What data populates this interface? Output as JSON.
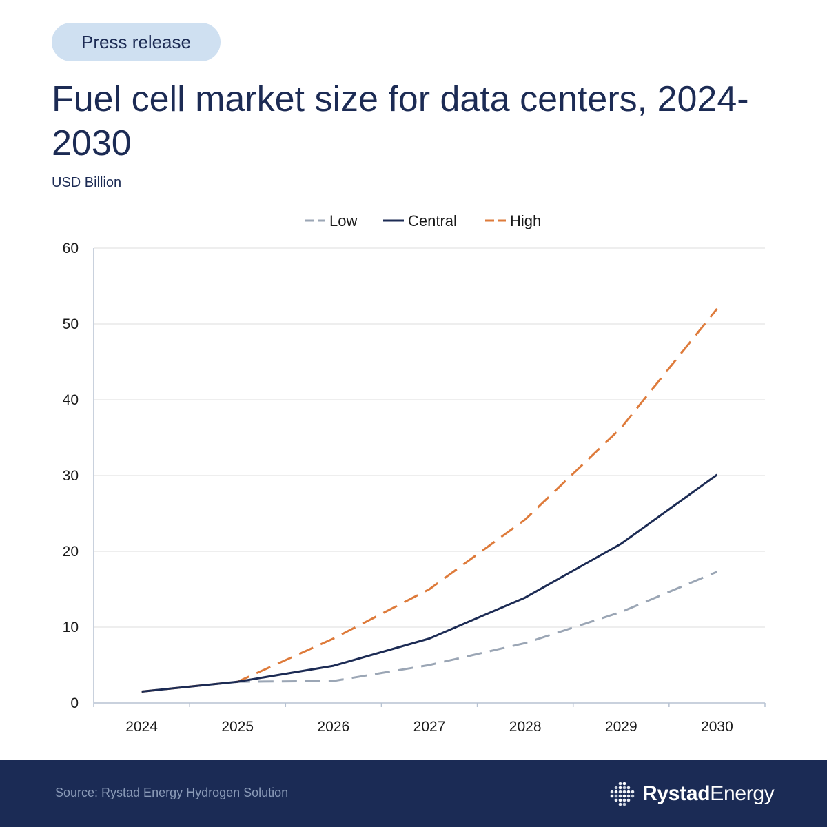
{
  "badge": "Press release",
  "title": "Fuel cell market size for data centers, 2024-2030",
  "unit": "USD Billion",
  "footer": {
    "source": "Source: Rystad Energy Hydrogen Solution",
    "logo_bold": "Rystad",
    "logo_regular": "Energy"
  },
  "colors": {
    "navy": "#1c2b54",
    "orange": "#de7b3b",
    "gray": "#9ba6b5",
    "badge_bg": "#cfe0f1",
    "footer_bg": "#1b2b55"
  },
  "chart_data": {
    "type": "line",
    "title": "Fuel cell market size for data centers, 2024-2030",
    "ylabel": "USD Billion",
    "xlabel": "",
    "categories": [
      "2024",
      "2025",
      "2026",
      "2027",
      "2028",
      "2029",
      "2030"
    ],
    "ylim": [
      0,
      60
    ],
    "yticks": [
      0,
      10,
      20,
      30,
      40,
      50,
      60
    ],
    "grid": true,
    "legend_position": "top-center",
    "series": [
      {
        "name": "Low",
        "style": "dashed",
        "color": "#9ba6b5",
        "values": [
          1.5,
          2.8,
          2.9,
          5.0,
          7.9,
          12.0,
          17.3
        ]
      },
      {
        "name": "Central",
        "style": "solid",
        "color": "#1c2b54",
        "values": [
          1.5,
          2.8,
          4.9,
          8.5,
          13.9,
          21.0,
          30.1
        ]
      },
      {
        "name": "High",
        "style": "dashed",
        "color": "#de7b3b",
        "values": [
          1.5,
          2.8,
          8.5,
          15.0,
          24.2,
          36.3,
          52.0
        ]
      }
    ]
  }
}
